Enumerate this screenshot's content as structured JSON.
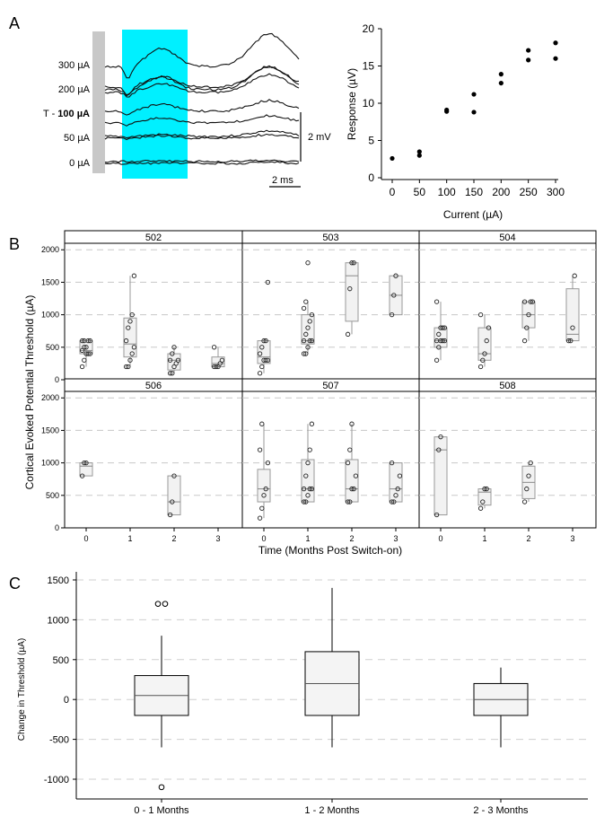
{
  "panel_labels": {
    "a": "A",
    "b": "B",
    "c": "C"
  },
  "chart_data": [
    {
      "id": "A_left_traces",
      "type": "line",
      "title": "",
      "trace_labels": [
        "300 µA",
        "200 µA",
        "100 µA",
        "50 µA",
        "0 µA"
      ],
      "threshold_prefix": "T - ",
      "threshold_label": "100 µA",
      "scalebar_y": "2 mV",
      "scalebar_x": "2 ms",
      "highlight_color": "#00f0ff",
      "stim_artifact_color": "#c8c8c8"
    },
    {
      "id": "A_right_scatter",
      "type": "scatter",
      "xlabel": "Current (µA)",
      "ylabel": "Response (µV)",
      "xlim": [
        0,
        300
      ],
      "ylim": [
        0,
        20
      ],
      "xticks": [
        "0",
        "50",
        "100",
        "150",
        "200",
        "250",
        "300"
      ],
      "yticks": [
        "0",
        "5",
        "10",
        "15",
        "20"
      ],
      "points": [
        {
          "x": 0,
          "y": 2.6
        },
        {
          "x": 50,
          "y": 3.0
        },
        {
          "x": 50,
          "y": 3.5
        },
        {
          "x": 100,
          "y": 8.9
        },
        {
          "x": 100,
          "y": 9.1
        },
        {
          "x": 150,
          "y": 8.8
        },
        {
          "x": 150,
          "y": 11.2
        },
        {
          "x": 200,
          "y": 12.7
        },
        {
          "x": 200,
          "y": 13.9
        },
        {
          "x": 250,
          "y": 15.8
        },
        {
          "x": 250,
          "y": 17.1
        },
        {
          "x": 300,
          "y": 16.0
        },
        {
          "x": 300,
          "y": 18.1
        }
      ]
    },
    {
      "id": "B_facets",
      "type": "box",
      "ylabel": "Cortical Evoked Potential Threshold (µA)",
      "xlabel": "Time (Months Post Switch-on)",
      "ylim": [
        0,
        2100
      ],
      "yticks": [
        "0",
        "500",
        "1000",
        "1500",
        "2000"
      ],
      "xticks": [
        "0",
        "1",
        "2",
        "3"
      ],
      "facets": [
        {
          "name": "502",
          "groups": [
            {
              "month": 0,
              "q1": 400,
              "med": 450,
              "q3": 600,
              "wlo": 200,
              "whi": 600,
              "pts": [
                200,
                300,
                400,
                400,
                400,
                450,
                500,
                500,
                600,
                600,
                600,
                600
              ]
            },
            {
              "month": 1,
              "q1": 350,
              "med": 550,
              "q3": 950,
              "wlo": 200,
              "whi": 1600,
              "pts": [
                200,
                200,
                300,
                400,
                500,
                600,
                800,
                900,
                1000,
                1600
              ]
            },
            {
              "month": 2,
              "q1": 150,
              "med": 300,
              "q3": 400,
              "wlo": 100,
              "whi": 500,
              "pts": [
                100,
                100,
                200,
                250,
                300,
                300,
                400,
                500
              ]
            },
            {
              "month": 3,
              "q1": 200,
              "med": 250,
              "q3": 350,
              "wlo": 200,
              "whi": 500,
              "pts": [
                200,
                200,
                200,
                250,
                300,
                500
              ]
            }
          ]
        },
        {
          "name": "503",
          "groups": [
            {
              "month": 0,
              "q1": 250,
              "med": 350,
              "q3": 600,
              "wlo": 100,
              "whi": 600,
              "pts": [
                100,
                200,
                300,
                300,
                300,
                400,
                500,
                600,
                600,
                1500
              ]
            },
            {
              "month": 1,
              "q1": 550,
              "med": 600,
              "q3": 1000,
              "wlo": 400,
              "whi": 1200,
              "pts": [
                400,
                400,
                500,
                600,
                600,
                600,
                700,
                800,
                900,
                1000,
                1100,
                1200,
                1800
              ]
            },
            {
              "month": 2,
              "q1": 900,
              "med": 1600,
              "q3": 1800,
              "wlo": 700,
              "whi": 1800,
              "pts": [
                700,
                1400,
                1800,
                1800
              ]
            },
            {
              "month": 3,
              "q1": 1000,
              "med": 1300,
              "q3": 1600,
              "wlo": 1000,
              "whi": 1600,
              "pts": [
                1000,
                1300,
                1600
              ]
            }
          ]
        },
        {
          "name": "504",
          "groups": [
            {
              "month": 0,
              "q1": 500,
              "med": 600,
              "q3": 800,
              "wlo": 300,
              "whi": 1200,
              "pts": [
                300,
                500,
                600,
                600,
                600,
                600,
                700,
                800,
                800,
                800,
                1200
              ]
            },
            {
              "month": 1,
              "q1": 300,
              "med": 400,
              "q3": 800,
              "wlo": 200,
              "whi": 1000,
              "pts": [
                200,
                300,
                400,
                600,
                800,
                1000
              ]
            },
            {
              "month": 2,
              "q1": 800,
              "med": 1000,
              "q3": 1200,
              "wlo": 600,
              "whi": 1200,
              "pts": [
                600,
                800,
                1000,
                1200,
                1200,
                1200
              ]
            },
            {
              "month": 3,
              "q1": 600,
              "med": 700,
              "q3": 1400,
              "wlo": 600,
              "whi": 1600,
              "pts": [
                600,
                600,
                800,
                1600
              ]
            }
          ]
        },
        {
          "name": "506",
          "groups": [
            {
              "month": 0,
              "q1": 800,
              "med": 950,
              "q3": 1000,
              "wlo": 800,
              "whi": 1000,
              "pts": [
                800,
                1000,
                1000
              ]
            },
            {
              "month": 2,
              "q1": 200,
              "med": 400,
              "q3": 800,
              "wlo": 200,
              "whi": 800,
              "pts": [
                200,
                400,
                800
              ]
            }
          ]
        },
        {
          "name": "507",
          "groups": [
            {
              "month": 0,
              "q1": 400,
              "med": 600,
              "q3": 900,
              "wlo": 150,
              "whi": 1600,
              "pts": [
                150,
                300,
                500,
                600,
                1000,
                1200,
                1600
              ]
            },
            {
              "month": 1,
              "q1": 400,
              "med": 600,
              "q3": 1050,
              "wlo": 400,
              "whi": 1600,
              "pts": [
                400,
                400,
                500,
                600,
                600,
                600,
                800,
                1000,
                1200,
                1600
              ]
            },
            {
              "month": 2,
              "q1": 400,
              "med": 600,
              "q3": 1050,
              "wlo": 400,
              "whi": 1600,
              "pts": [
                400,
                400,
                600,
                600,
                800,
                1000,
                1200,
                1600
              ]
            },
            {
              "month": 3,
              "q1": 400,
              "med": 600,
              "q3": 1000,
              "wlo": 400,
              "whi": 1000,
              "pts": [
                400,
                400,
                500,
                600,
                800,
                1000
              ]
            }
          ]
        },
        {
          "name": "508",
          "groups": [
            {
              "month": 0,
              "q1": 200,
              "med": 1200,
              "q3": 1400,
              "wlo": 200,
              "whi": 1400,
              "pts": [
                200,
                1200,
                1400
              ]
            },
            {
              "month": 1,
              "q1": 350,
              "med": 550,
              "q3": 600,
              "wlo": 300,
              "whi": 600,
              "pts": [
                300,
                400,
                600,
                600
              ]
            },
            {
              "month": 2,
              "q1": 450,
              "med": 700,
              "q3": 950,
              "wlo": 400,
              "whi": 1000,
              "pts": [
                400,
                600,
                800,
                1000
              ]
            }
          ]
        }
      ]
    },
    {
      "id": "C_box",
      "type": "box",
      "ylabel": "Change in Threshold (µA)",
      "xlabel": "",
      "ylim": [
        -1200,
        1500
      ],
      "yticks": [
        "1500",
        "1000",
        "500",
        "0",
        "-500",
        "-1000"
      ],
      "categories": [
        "0 - 1 Months",
        "1 - 2 Months",
        "2 - 3 Months"
      ],
      "boxes": [
        {
          "q1": -200,
          "med": 50,
          "q3": 300,
          "wlo": -600,
          "whi": 800,
          "outliers": [
            1200,
            1200,
            -1100
          ]
        },
        {
          "q1": -200,
          "med": 200,
          "q3": 600,
          "wlo": -600,
          "whi": 1400,
          "outliers": []
        },
        {
          "q1": -200,
          "med": 0,
          "q3": 200,
          "wlo": -600,
          "whi": 400,
          "outliers": []
        }
      ]
    }
  ]
}
